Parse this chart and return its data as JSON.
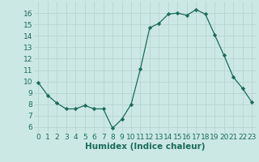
{
  "x": [
    0,
    1,
    2,
    3,
    4,
    5,
    6,
    7,
    8,
    9,
    10,
    11,
    12,
    13,
    14,
    15,
    16,
    17,
    18,
    19,
    20,
    21,
    22,
    23
  ],
  "y": [
    9.9,
    8.8,
    8.1,
    7.6,
    7.6,
    7.9,
    7.6,
    7.6,
    5.9,
    6.7,
    8.0,
    11.1,
    14.7,
    15.1,
    15.9,
    16.0,
    15.8,
    16.3,
    15.9,
    14.1,
    12.3,
    10.4,
    9.4,
    8.2
  ],
  "line_color": "#1a6b5a",
  "marker": "D",
  "marker_size": 2.2,
  "xlabel": "Humidex (Indice chaleur)",
  "xlim": [
    -0.5,
    23.5
  ],
  "ylim": [
    5.5,
    17.0
  ],
  "yticks": [
    6,
    7,
    8,
    9,
    10,
    11,
    12,
    13,
    14,
    15,
    16
  ],
  "xticks": [
    0,
    1,
    2,
    3,
    4,
    5,
    6,
    7,
    8,
    9,
    10,
    11,
    12,
    13,
    14,
    15,
    16,
    17,
    18,
    19,
    20,
    21,
    22,
    23
  ],
  "xtick_labels": [
    "0",
    "1",
    "2",
    "3",
    "4",
    "5",
    "6",
    "7",
    "8",
    "9",
    "10",
    "11",
    "12",
    "13",
    "14",
    "15",
    "16",
    "17",
    "18",
    "19",
    "20",
    "21",
    "22",
    "23"
  ],
  "grid_color": "#b8d4d0",
  "background_color": "#cce8e4",
  "xlabel_fontsize": 7.5,
  "tick_fontsize": 6.5
}
